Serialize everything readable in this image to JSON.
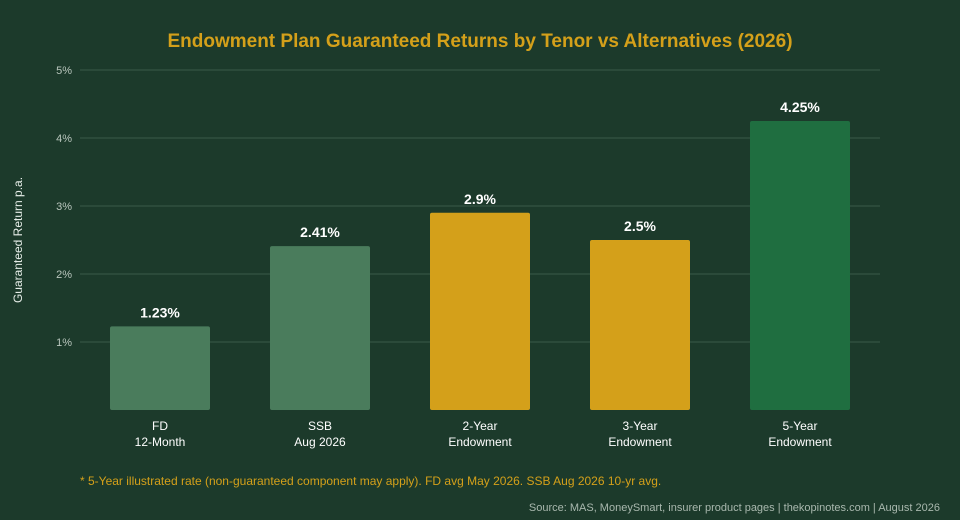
{
  "colors": {
    "background": "#1c3a2b",
    "title": "#d4a01a",
    "gridline": "#3a5a48",
    "bar_alternative": "#4a7c5c",
    "bar_endowment": "#d4a01a",
    "bar_highlight": "#1f6e40",
    "footnote": "#d4a01a"
  },
  "chart_data": {
    "type": "bar",
    "title": "Endowment Plan Guaranteed Returns by Tenor vs Alternatives (2026)",
    "ylabel": "Guaranteed Return p.a.",
    "xlabel": "",
    "ylim": [
      0,
      5
    ],
    "yticks": [
      1,
      2,
      3,
      4,
      5
    ],
    "ytick_labels": [
      "1%",
      "2%",
      "3%",
      "4%",
      "5%"
    ],
    "grid": true,
    "categories": [
      [
        "FD",
        "12-Month"
      ],
      [
        "SSB",
        "Aug 2026"
      ],
      [
        "2-Year",
        "Endowment"
      ],
      [
        "3-Year",
        "Endowment"
      ],
      [
        "5-Year",
        "Endowment"
      ]
    ],
    "values": [
      1.23,
      2.41,
      2.9,
      2.5,
      4.25
    ],
    "data_labels": [
      "1.23%",
      "2.41%",
      "2.9%",
      "2.5%",
      "4.25%"
    ],
    "bar_colors": [
      "#4a7c5c",
      "#4a7c5c",
      "#d4a01a",
      "#d4a01a",
      "#1f6e40"
    ]
  },
  "footnote": "* 5-Year illustrated rate (non-guaranteed component may apply). FD avg May 2026. SSB Aug 2026 10-yr avg.",
  "source": "Source: MAS, MoneySmart, insurer product pages | thekopinotes.com | August 2026"
}
